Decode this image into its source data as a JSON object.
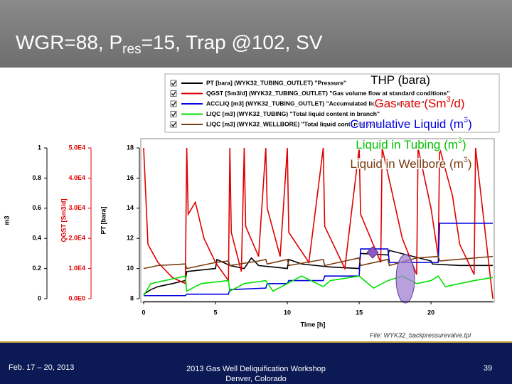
{
  "chart_data": {
    "type": "line",
    "title": {
      "text": "WGR=88, P",
      "sub": "res",
      "after": "=15, Trap @102, SV"
    },
    "xlabel": "Time [h]",
    "ylabel": "PT [bara]",
    "y2label": "QGST [Sm3/d]",
    "y3label": "m3",
    "file_note": "File: WYK32_backpressurevalve.tpl",
    "xlim": [
      0,
      24.3
    ],
    "xticks": [
      0,
      5,
      10,
      15,
      20
    ],
    "ylim": [
      8,
      18
    ],
    "yticks": [
      8,
      10,
      12,
      14,
      16,
      18
    ],
    "y2lim": [
      0,
      50000
    ],
    "y2ticks": [
      {
        "value": 0,
        "label": "0.0E0"
      },
      {
        "value": 10000,
        "label": "1.0E4"
      },
      {
        "value": 20000,
        "label": "2.0E4"
      },
      {
        "value": 30000,
        "label": "3.0E4"
      },
      {
        "value": 40000,
        "label": "4.0E4"
      },
      {
        "value": 50000,
        "label": "5.0E4"
      }
    ],
    "y3lim": [
      0,
      1
    ],
    "y3ticks": [
      0,
      0.2,
      0.4,
      0.6,
      0.8,
      1
    ],
    "y2color": "#e00000",
    "series": [
      {
        "name": "PT [bara] (WYK32_TUBING_OUTLET) \"Pressure\"",
        "color": "#000000",
        "axis": "y",
        "x": [
          0,
          0.5,
          1,
          2,
          2.9,
          3,
          4,
          5,
          5.1,
          6,
          7,
          7.5,
          8,
          9,
          10,
          10.1,
          11,
          12,
          13,
          15,
          15.1,
          17,
          17.1,
          20,
          20.1,
          22,
          24.3
        ],
        "values": [
          8.3,
          8.6,
          8.8,
          9,
          9.2,
          9.8,
          9.9,
          10,
          10.6,
          10.2,
          10,
          10.7,
          10.2,
          10.1,
          10,
          10.6,
          10.3,
          10.2,
          10.1,
          10,
          11,
          10.9,
          11.2,
          10.5,
          10.3,
          10.2,
          10.2
        ]
      },
      {
        "name": "QGST [Sm3/d] (WYK32_TUBING_OUTLET) \"Gas volume flow at standard conditions\"",
        "color": "#e00000",
        "axis": "y2",
        "x": [
          0,
          0.3,
          1,
          2,
          2.9,
          3,
          3.1,
          3.6,
          4.2,
          5,
          5.9,
          6,
          6.1,
          6.8,
          7,
          7.1,
          8,
          8.5,
          8.6,
          9.5,
          10,
          10.1,
          11.5,
          12.5,
          12.6,
          14,
          15,
          15.1,
          16.5,
          16.6,
          18,
          19,
          19.1,
          20,
          20.5,
          20.6,
          21.5,
          22,
          23,
          23.1,
          24.3
        ],
        "values": [
          50000,
          18000,
          12000,
          7000,
          5000,
          50000,
          28000,
          32000,
          20000,
          12000,
          6000,
          50000,
          22000,
          9000,
          50000,
          24000,
          14000,
          50000,
          30000,
          14000,
          50000,
          22000,
          12000,
          50000,
          24000,
          10000,
          50000,
          28000,
          12000,
          50000,
          20000,
          8000,
          50000,
          30000,
          14000,
          50000,
          34000,
          18000,
          8000,
          50000,
          0
        ]
      },
      {
        "name": "ACCLIQ [m3] (WYK32_TUBING_OUTLET) \"Accumulated liquid volume flow\"",
        "color": "#0000e0",
        "axis": "y3",
        "x": [
          0,
          2.9,
          3,
          5,
          5.9,
          6,
          8.5,
          8.6,
          10,
          10.1,
          12.5,
          12.6,
          15,
          15.1,
          17,
          17.1,
          18,
          19,
          20.5,
          20.6,
          24.3
        ],
        "values": [
          0.02,
          0.02,
          0.03,
          0.03,
          0.03,
          0.06,
          0.07,
          0.1,
          0.1,
          0.12,
          0.12,
          0.15,
          0.15,
          0.33,
          0.33,
          0.24,
          0.24,
          0.24,
          0.24,
          0.5,
          0.5
        ]
      },
      {
        "name": "LIQC [m3] (WYK32_TUBING) \"Total liquid content in branch\"",
        "color": "#00e000",
        "axis": "y3",
        "x": [
          0,
          0.5,
          2.9,
          3,
          4,
          5.9,
          6,
          7,
          8.5,
          9,
          10,
          11,
          12.5,
          13,
          15,
          16,
          17,
          18,
          19,
          20,
          20.5,
          21,
          23,
          24.3
        ],
        "values": [
          0.02,
          0.1,
          0.15,
          0.05,
          0.1,
          0.12,
          0.05,
          0.1,
          0.12,
          0.05,
          0.1,
          0.15,
          0.08,
          0.12,
          0.15,
          0.07,
          0.12,
          0.15,
          0.1,
          0.12,
          0.15,
          0.08,
          0.12,
          0.14
        ]
      },
      {
        "name": "LIQC [m3] (WYK32_WELLBORE) \"Total liquid content in branch\"",
        "color": "#7a3b10",
        "axis": "y3",
        "x": [
          0,
          1,
          2.9,
          3,
          5,
          5.9,
          6,
          8,
          8.5,
          8.6,
          10,
          10.1,
          12.5,
          12.6,
          15,
          15.1,
          17,
          17.1,
          19,
          20.5,
          20.6,
          24.3
        ],
        "values": [
          0.2,
          0.22,
          0.23,
          0.2,
          0.24,
          0.25,
          0.22,
          0.25,
          0.26,
          0.23,
          0.26,
          0.22,
          0.26,
          0.22,
          0.27,
          0.22,
          0.26,
          0.22,
          0.27,
          0.28,
          0.25,
          0.28
        ]
      }
    ],
    "annotations": [
      {
        "text": "THP (bara)",
        "sup": "",
        "after": "",
        "color": "#000000"
      },
      {
        "text": "Gas rate (Sm",
        "sup": "3",
        "after": "/d)",
        "color": "#e00000"
      },
      {
        "text": "Cumulative Liquid (m",
        "sup": "3",
        "after": ")",
        "color": "#0000e0"
      },
      {
        "text": "Liquid in Tubing (m",
        "sup": "3",
        "after": ")",
        "color": "#00c000"
      },
      {
        "text": "Liquid in Wellbore (m",
        "sup": "3",
        "after": ")",
        "color": "#7a3b10"
      }
    ]
  },
  "footer": {
    "date": "Feb. 17 – 20, 2013",
    "event": "2013 Gas Well Deliquification Workshop",
    "location": "Denver, Colorado",
    "page": "39"
  }
}
